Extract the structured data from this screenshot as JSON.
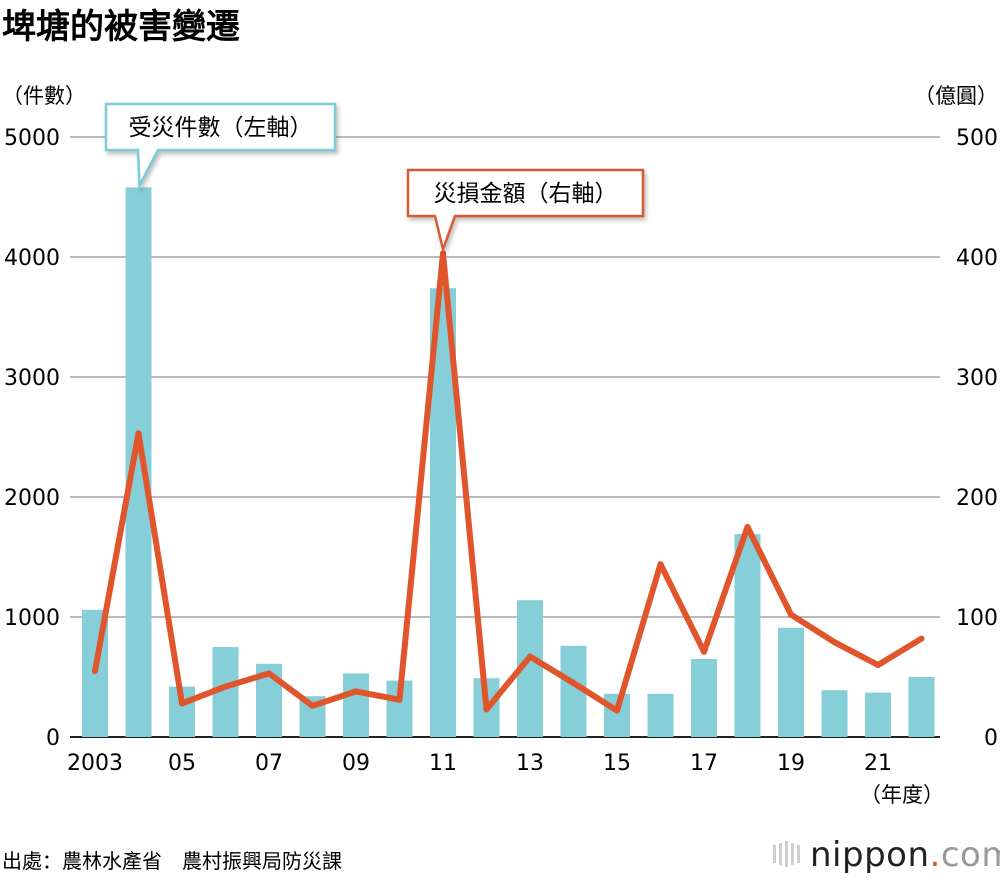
{
  "title": "埤塘的被害變遷",
  "left_unit": "（件數）",
  "right_unit": "（億圓）",
  "x_unit": "（年度）",
  "source": "出處：農林水產省　農村振興局防災課",
  "logo": {
    "main": "nippon",
    "dot": ".",
    "suffix": "com"
  },
  "colors": {
    "bar": "#86cfd8",
    "line": "#e0552b",
    "callout_bar_border": "#7ccdd6",
    "callout_line_border": "#d95a33",
    "grid": "#777777",
    "text": "#111111"
  },
  "chart_data": {
    "type": "bar+line",
    "years": [
      2003,
      2004,
      2005,
      2006,
      2007,
      2008,
      2009,
      2010,
      2011,
      2012,
      2013,
      2014,
      2015,
      2016,
      2017,
      2018,
      2019,
      2020,
      2021,
      2022
    ],
    "x_tick_labels": [
      "2003",
      "05",
      "07",
      "09",
      "11",
      "13",
      "15",
      "17",
      "19",
      "21"
    ],
    "x_tick_years": [
      2003,
      2005,
      2007,
      2009,
      2011,
      2013,
      2015,
      2017,
      2019,
      2021
    ],
    "left_axis": {
      "ylim": [
        0,
        5000
      ],
      "ticks": [
        0,
        1000,
        2000,
        3000,
        4000,
        5000
      ]
    },
    "right_axis": {
      "ylim": [
        0,
        500
      ],
      "ticks": [
        0,
        100,
        200,
        300,
        400,
        500
      ]
    },
    "series": [
      {
        "name": "受災件數（左軸）",
        "kind": "bar",
        "axis": "left",
        "values": [
          1060,
          4580,
          420,
          750,
          610,
          340,
          530,
          470,
          3740,
          490,
          1140,
          760,
          360,
          360,
          650,
          1690,
          910,
          390,
          370,
          500
        ]
      },
      {
        "name": "災損金額（右軸）",
        "kind": "line",
        "axis": "right",
        "values": [
          55,
          253,
          28,
          42,
          53,
          26,
          38,
          31,
          403,
          23,
          67,
          45,
          22,
          144,
          71,
          175,
          102,
          79,
          60,
          82
        ]
      }
    ],
    "grid": true
  }
}
